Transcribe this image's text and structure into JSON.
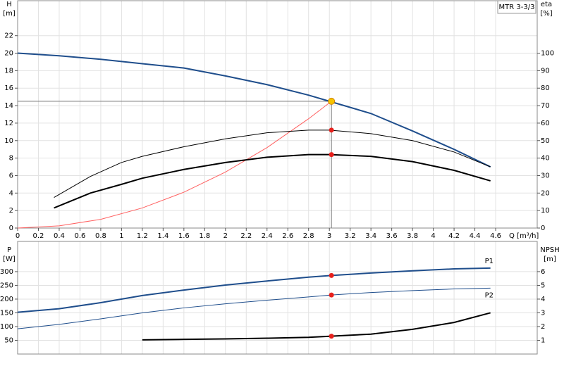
{
  "chart_data": [
    {
      "type": "line",
      "title": "MTR 3-3/3",
      "y_label": "H",
      "y_unit": "[m]",
      "y2_label": "eta",
      "y2_unit": "[%]",
      "x_label": "Q [m³/h]",
      "xlim": [
        0,
        5.0
      ],
      "xticks": [
        0,
        0.2,
        0.4,
        0.6,
        0.8,
        1.0,
        1.2,
        1.4,
        1.6,
        1.8,
        2.0,
        2.2,
        2.4,
        2.6,
        2.8,
        3.0,
        3.2,
        3.4,
        3.6,
        3.8,
        4.0,
        4.2,
        4.4,
        4.6
      ],
      "ylim": [
        0,
        26
      ],
      "yticks": [
        0,
        2,
        4,
        6,
        8,
        10,
        12,
        14,
        16,
        18,
        20,
        22
      ],
      "y2lim": [
        0,
        130
      ],
      "y2ticks": [
        0,
        10,
        20,
        30,
        40,
        50,
        60,
        70,
        80,
        90,
        100
      ],
      "grid": true,
      "operating_point": {
        "x": 3.02,
        "y": 14.5,
        "color": "#f5c400"
      },
      "series": [
        {
          "color": "#1f4e8c",
          "line_width": 2,
          "x": [
            0,
            0.4,
            0.8,
            1.2,
            1.6,
            2.0,
            2.4,
            2.8,
            3.0,
            3.4,
            3.8,
            4.2,
            4.55
          ],
          "values": [
            20,
            19.7,
            19.3,
            18.8,
            18.3,
            17.4,
            16.4,
            15.2,
            14.5,
            13.1,
            11.1,
            9.0,
            7.0
          ]
        },
        {
          "color": "#ff6060",
          "line_width": 1,
          "x": [
            0,
            0.4,
            0.8,
            1.2,
            1.6,
            2.0,
            2.4,
            2.8,
            3.02
          ],
          "values": [
            0,
            0.25,
            1.0,
            2.3,
            4.1,
            6.4,
            9.2,
            12.5,
            14.5
          ]
        },
        {
          "color": "#000000",
          "line_width": 1,
          "axis": "y2",
          "point": 56,
          "x": [
            0.35,
            0.7,
            1.0,
            1.2,
            1.6,
            2.0,
            2.4,
            2.8,
            3.0,
            3.4,
            3.8,
            4.2,
            4.55
          ],
          "values": [
            17.5,
            29.5,
            37.5,
            41,
            46.5,
            51,
            54.5,
            56,
            56,
            54,
            50,
            43.5,
            35
          ]
        },
        {
          "color": "#000000",
          "line_width": 2,
          "axis": "y2",
          "point": 42,
          "x": [
            0.35,
            0.7,
            1.0,
            1.2,
            1.6,
            2.0,
            2.4,
            2.8,
            3.0,
            3.4,
            3.8,
            4.2,
            4.55
          ],
          "values": [
            11.5,
            20,
            25,
            28.5,
            33.5,
            37.5,
            40.5,
            42,
            42,
            41,
            38,
            33,
            27
          ]
        }
      ]
    },
    {
      "type": "line",
      "y_label": "P",
      "y_unit": "[W]",
      "y2_label": "NPSH",
      "y2_unit": "[m]",
      "xlim": [
        0,
        5.0
      ],
      "ylim": [
        0,
        410
      ],
      "yticks": [
        50,
        100,
        150,
        200,
        250,
        300
      ],
      "y2lim": [
        0,
        8.2
      ],
      "y2ticks": [
        1,
        2,
        3,
        4,
        5,
        6
      ],
      "grid": true,
      "operating_point": {
        "x": 3.02
      },
      "series": [
        {
          "name": "P1",
          "color": "#1f4e8c",
          "line_width": 2,
          "point": 286,
          "x": [
            0,
            0.4,
            0.8,
            1.2,
            1.6,
            2.0,
            2.4,
            2.8,
            3.02,
            3.4,
            3.8,
            4.2,
            4.55
          ],
          "values": [
            152,
            165,
            187,
            213,
            233,
            251,
            266,
            280,
            286,
            295,
            303,
            310,
            313
          ]
        },
        {
          "name": "P2",
          "color": "#1f4e8c",
          "line_width": 1,
          "point": 215,
          "x": [
            0,
            0.4,
            0.8,
            1.2,
            1.6,
            2.0,
            2.4,
            2.8,
            3.02,
            3.4,
            3.8,
            4.2,
            4.55
          ],
          "values": [
            92,
            108,
            128,
            150,
            168,
            183,
            196,
            208,
            215,
            224,
            231,
            237,
            240
          ]
        },
        {
          "color": "#000000",
          "line_width": 2,
          "axis": "y2",
          "point": 1.3,
          "x": [
            1.2,
            1.6,
            2.0,
            2.4,
            2.8,
            3.02,
            3.4,
            3.8,
            4.2,
            4.55
          ],
          "values": [
            1.03,
            1.07,
            1.1,
            1.15,
            1.22,
            1.3,
            1.45,
            1.8,
            2.3,
            3.0
          ]
        }
      ]
    }
  ]
}
